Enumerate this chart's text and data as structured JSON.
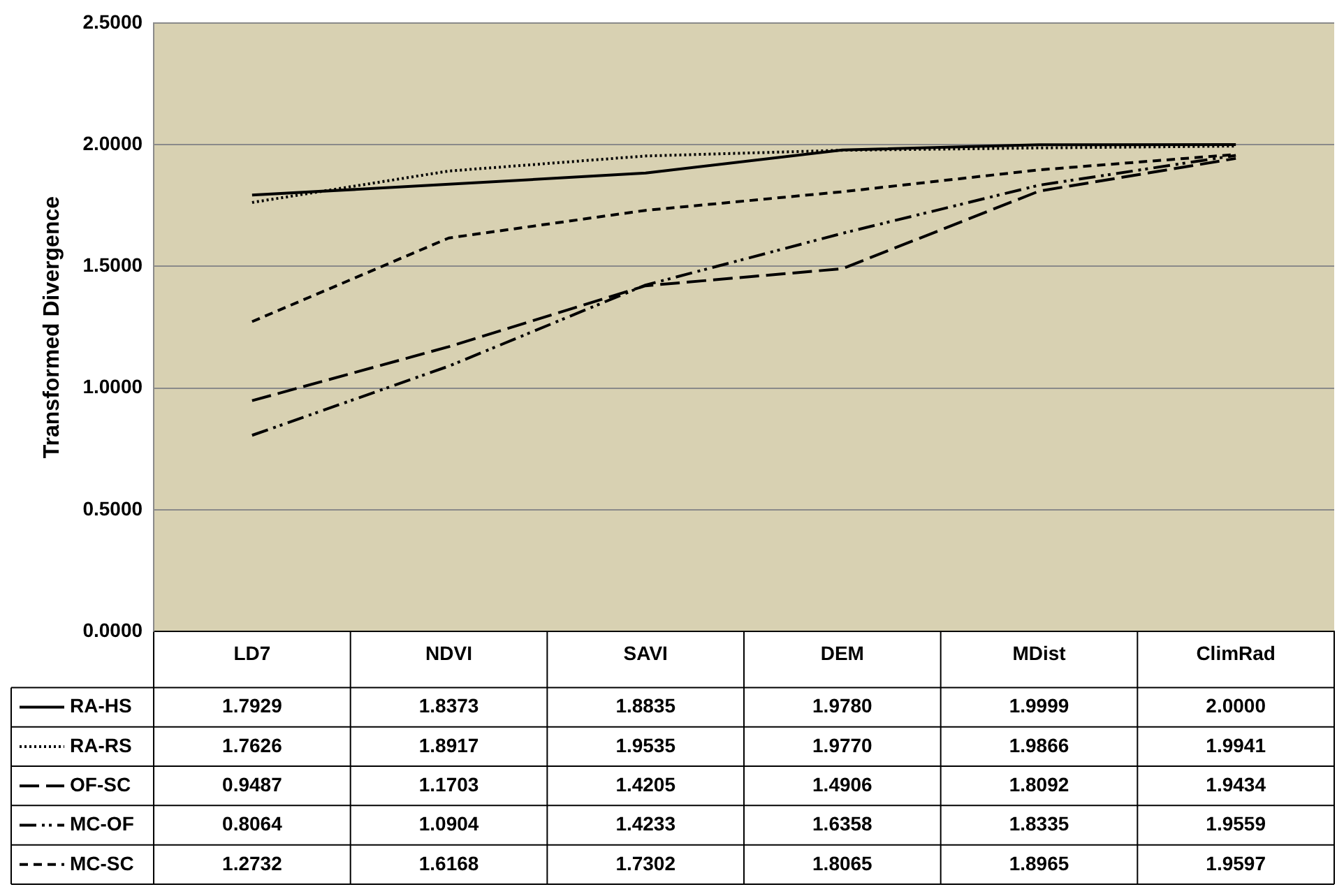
{
  "chart_data": {
    "type": "line",
    "ylabel": "Transformed Divergence",
    "categories": [
      "LD7",
      "NDVI",
      "SAVI",
      "DEM",
      "MDist",
      "ClimRad"
    ],
    "series": [
      {
        "name": "RA-HS",
        "color": "#000000",
        "line_style": "solid",
        "values": [
          1.7929,
          1.8373,
          1.8835,
          1.978,
          1.9999,
          2.0
        ],
        "value_labels": [
          "1.7929",
          "1.8373",
          "1.8835",
          "1.9780",
          "1.9999",
          "2.0000"
        ]
      },
      {
        "name": "RA-RS",
        "color": "#000000",
        "line_style": "dotted",
        "values": [
          1.7626,
          1.8917,
          1.9535,
          1.977,
          1.9866,
          1.9941
        ],
        "value_labels": [
          "1.7626",
          "1.8917",
          "1.9535",
          "1.9770",
          "1.9866",
          "1.9941"
        ]
      },
      {
        "name": "OF-SC",
        "color": "#000000",
        "line_style": "longdash",
        "values": [
          0.9487,
          1.1703,
          1.4205,
          1.4906,
          1.8092,
          1.9434
        ],
        "value_labels": [
          "0.9487",
          "1.1703",
          "1.4205",
          "1.4906",
          "1.8092",
          "1.9434"
        ]
      },
      {
        "name": "MC-OF",
        "color": "#000000",
        "line_style": "dashdotdot",
        "values": [
          0.8064,
          1.0904,
          1.4233,
          1.6358,
          1.8335,
          1.9559
        ],
        "value_labels": [
          "0.8064",
          "1.0904",
          "1.4233",
          "1.6358",
          "1.8335",
          "1.9559"
        ]
      },
      {
        "name": "MC-SC",
        "color": "#000000",
        "line_style": "dashed",
        "values": [
          1.2732,
          1.6168,
          1.7302,
          1.8065,
          1.8965,
          1.9597
        ],
        "value_labels": [
          "1.2732",
          "1.6168",
          "1.7302",
          "1.8065",
          "1.8965",
          "1.9597"
        ]
      }
    ],
    "ylim": [
      0,
      2.5
    ],
    "yticks": [
      {
        "value": 0,
        "label": "0.0000"
      },
      {
        "value": 0.5,
        "label": "0.5000"
      },
      {
        "value": 1,
        "label": "1.0000"
      },
      {
        "value": 1.5,
        "label": "1.5000"
      },
      {
        "value": 2,
        "label": "2.0000"
      },
      {
        "value": 2.5,
        "label": "2.5000"
      }
    ],
    "grid": "y",
    "legend": "bottom left",
    "marker": "none"
  }
}
